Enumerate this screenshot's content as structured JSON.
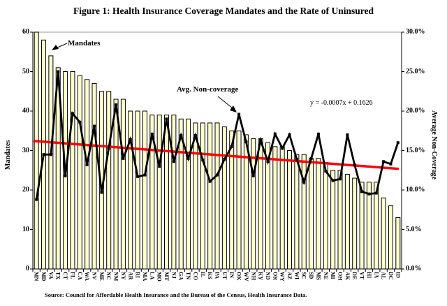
{
  "title": "Figure 1: Health Insurance Coverage Mandates and the Rate of Uninsured",
  "source": "Source: Council for Affordable Health Insurance and the Bureau of the Census, Health Insurance Data.",
  "left_axis": {
    "title": "Mandates",
    "ticks": [
      {
        "label": "0",
        "value": 0
      },
      {
        "label": "10",
        "value": 10
      },
      {
        "label": "20",
        "value": 20
      },
      {
        "label": "30",
        "value": 30
      },
      {
        "label": "40",
        "value": 40
      },
      {
        "label": "50",
        "value": 50
      },
      {
        "label": "60",
        "value": 60
      }
    ]
  },
  "right_axis": {
    "title": "Average Non-Coverage",
    "ticks": [
      {
        "label": "0.0%",
        "value": 0
      },
      {
        "label": "5.0%",
        "value": 5
      },
      {
        "label": "10.0%",
        "value": 10
      },
      {
        "label": "15.0%",
        "value": 15
      },
      {
        "label": "20.0%",
        "value": 20
      },
      {
        "label": "25.0%",
        "value": 25
      },
      {
        "label": "30.0%",
        "value": 30
      }
    ]
  },
  "annotations": {
    "mandates_label": "Mandates",
    "line_label": "Avg. Non-coverage",
    "equation": "y = -0.0007x + 0.1626"
  },
  "chart_data": {
    "type": "bar+line",
    "categories": [
      "MN",
      "MD",
      "VA",
      "TX",
      "CT",
      "FL",
      "CA",
      "WA",
      "NV",
      "ME",
      "NC",
      "NM",
      "NY",
      "AR",
      "RI",
      "MA",
      "LA",
      "MO",
      "MT",
      "NJ",
      "GA",
      "TN",
      "CO",
      "IL",
      "KS",
      "PA",
      "UT",
      "IN",
      "OK",
      "WV",
      "NH",
      "KY",
      "ND",
      "OR",
      "WY",
      "AZ",
      "WI",
      "SC",
      "SD",
      "MS",
      "NE",
      "MI",
      "OH",
      "AK",
      "DE",
      "VT",
      "HI",
      "IA",
      "AL",
      "DC",
      "ID"
    ],
    "series": [
      {
        "name": "Mandates",
        "type": "bar",
        "axis": "left",
        "values": [
          60,
          58,
          54,
          51,
          50,
          50,
          49,
          48,
          47,
          45,
          45,
          43,
          43,
          40,
          40,
          40,
          39,
          39,
          39,
          39,
          38,
          38,
          37,
          37,
          37,
          37,
          36,
          35,
          35,
          34,
          33,
          33,
          32,
          31,
          31,
          30,
          29,
          29,
          28,
          28,
          27,
          25,
          25,
          24,
          23,
          22,
          22,
          22,
          18,
          16,
          13
        ]
      },
      {
        "name": "Avg. Non-coverage",
        "type": "line",
        "axis": "right",
        "values_pct": [
          8.8,
          14.5,
          14.5,
          25.0,
          11.8,
          19.7,
          18.6,
          13.2,
          18.1,
          9.7,
          15.3,
          20.8,
          14.0,
          16.4,
          11.7,
          11.9,
          17.1,
          13.0,
          19.0,
          13.6,
          16.9,
          14.0,
          16.9,
          13.8,
          11.1,
          11.9,
          13.9,
          15.5,
          19.6,
          16.1,
          11.8,
          16.3,
          13.6,
          17.1,
          15.3,
          17.0,
          13.9,
          11.0,
          14.0,
          17.1,
          12.4,
          11.2,
          11.4,
          17.0,
          13.2,
          9.8,
          9.5,
          9.6,
          13.6,
          13.3,
          16.0
        ]
      },
      {
        "name": "Trend",
        "type": "trendline",
        "axis": "right",
        "equation": "y = -0.0007x + 0.1626",
        "slope": -0.0007,
        "intercept": 0.1626
      }
    ],
    "left_ylim": [
      0,
      60
    ],
    "right_ylim_pct": [
      0,
      30
    ],
    "grid": "off",
    "colors": {
      "bar_fill": "#FFFFCC",
      "bar_border": "#000000",
      "line": "#000000",
      "trend": "#FF0000",
      "plot_top_border": "#999999",
      "axis": "#000000"
    }
  }
}
